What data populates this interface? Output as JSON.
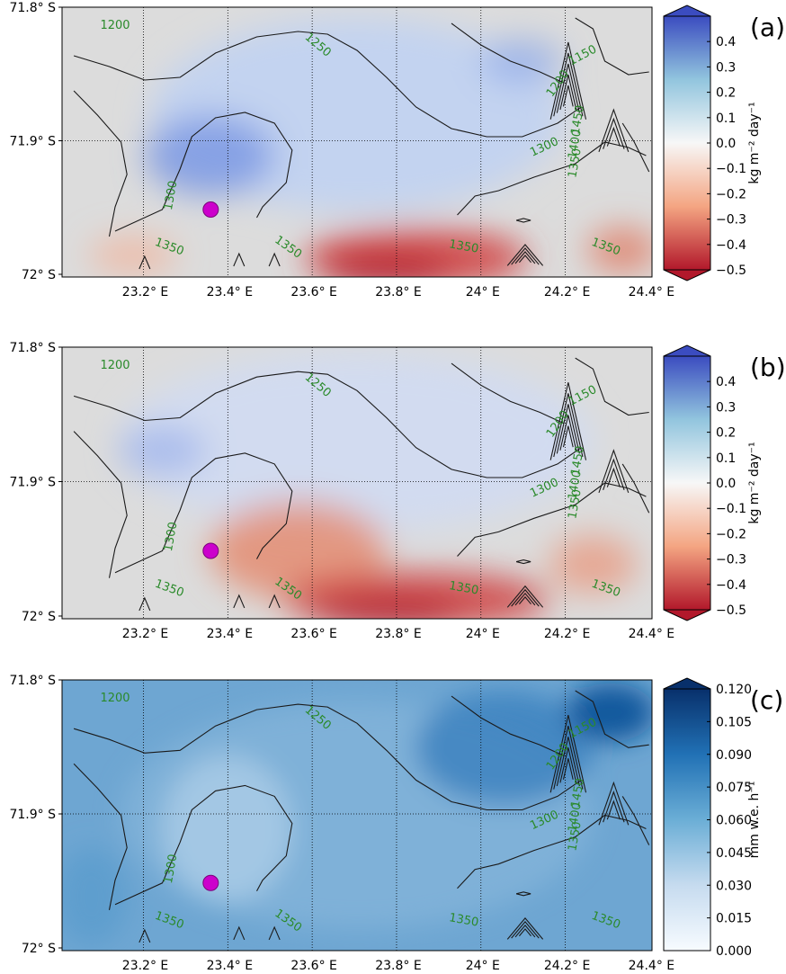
{
  "chart_data": [
    {
      "type": "heatmap",
      "panel_label": "(a)",
      "lat_ticks": [
        "71.8° S",
        "71.9° S",
        "72° S"
      ],
      "lon_ticks": [
        "23.2° E",
        "23.4° E",
        "23.6° E",
        "23.8° E",
        "24° E",
        "24.2° E",
        "24.4° E"
      ],
      "colorbar": {
        "label": "kg m⁻² day⁻¹",
        "ticks": [
          "0.4",
          "0.3",
          "0.2",
          "0.1",
          "0.0",
          "−0.1",
          "−0.2",
          "−0.3",
          "−0.4",
          "−0.5"
        ],
        "range": [
          -0.5,
          0.5
        ],
        "colormap": "red-blue diverging",
        "colors": [
          "#b2182b",
          "#f4a582",
          "#f7f7f7",
          "#92c5de",
          "#3b4cc0"
        ]
      },
      "contour_labels": [
        "1200",
        "1250",
        "1150",
        "1200",
        "1300",
        "1450",
        "1400",
        "1350",
        "1300",
        "1350",
        "1350",
        "1350",
        "1350"
      ],
      "marker_color": "#cc00cc"
    },
    {
      "type": "heatmap",
      "panel_label": "(b)",
      "lat_ticks": [
        "71.8° S",
        "71.9° S",
        "72° S"
      ],
      "lon_ticks": [
        "23.2° E",
        "23.4° E",
        "23.6° E",
        "23.8° E",
        "24° E",
        "24.2° E",
        "24.4° E"
      ],
      "colorbar": {
        "label": "kg m⁻² day⁻¹",
        "ticks": [
          "0.4",
          "0.3",
          "0.2",
          "0.1",
          "0.0",
          "−0.1",
          "−0.2",
          "−0.3",
          "−0.4",
          "−0.5"
        ],
        "range": [
          -0.5,
          0.5
        ],
        "colormap": "red-blue diverging",
        "colors": [
          "#b2182b",
          "#f4a582",
          "#f7f7f7",
          "#92c5de",
          "#3b4cc0"
        ]
      },
      "contour_labels": [
        "1200",
        "1250",
        "1150",
        "1200",
        "1300",
        "1450",
        "1400",
        "1350",
        "1300",
        "1350",
        "1350",
        "1350",
        "1350"
      ],
      "marker_color": "#cc00cc"
    },
    {
      "type": "heatmap",
      "panel_label": "(c)",
      "lat_ticks": [
        "71.8° S",
        "71.9° S",
        "72° S"
      ],
      "lon_ticks": [
        "23.2° E",
        "23.4° E",
        "23.6° E",
        "23.8° E",
        "24° E",
        "24.2° E",
        "24.4° E"
      ],
      "colorbar": {
        "label": "mm w.e. h⁻¹",
        "ticks": [
          "0.120",
          "0.105",
          "0.090",
          "0.075",
          "0.060",
          "0.045",
          "0.030",
          "0.015",
          "0.000"
        ],
        "range": [
          0,
          0.12
        ],
        "colormap": "blues",
        "colors": [
          "#f7fbff",
          "#c6dbef",
          "#6baed6",
          "#2171b5",
          "#08306b"
        ]
      },
      "contour_labels": [
        "1200",
        "1250",
        "1150",
        "1200",
        "1300",
        "1450",
        "1400",
        "1350",
        "1300",
        "1350",
        "1350",
        "1350",
        "1350"
      ],
      "marker_color": "#cc00cc"
    }
  ]
}
